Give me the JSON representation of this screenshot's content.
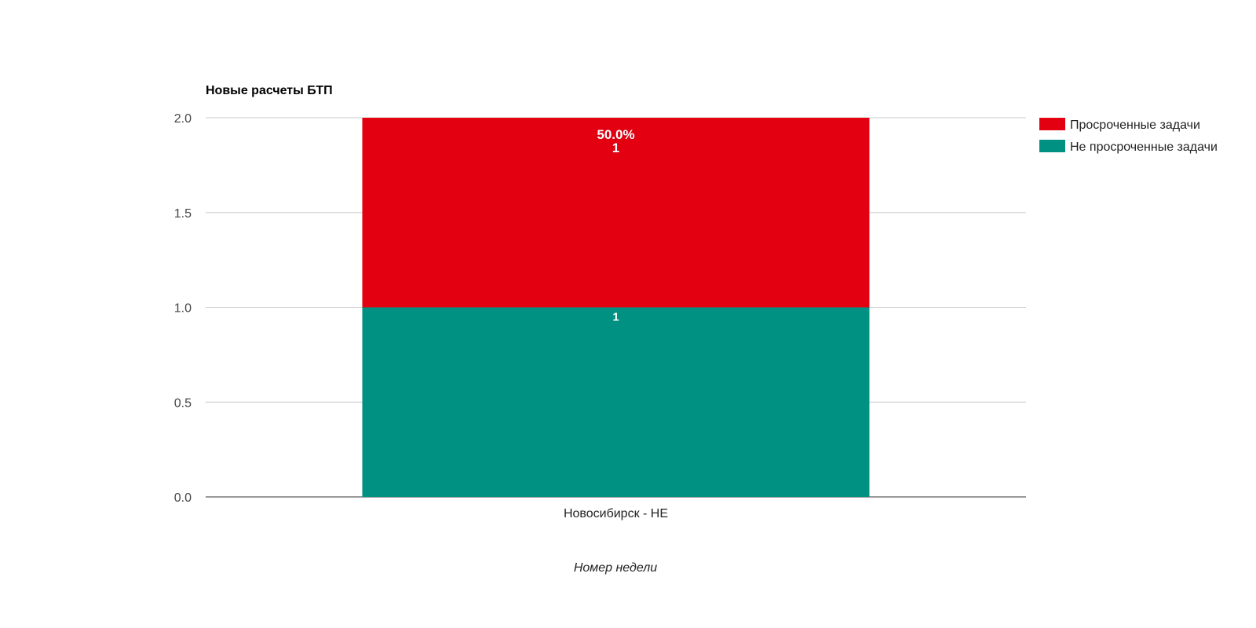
{
  "chart_data": {
    "type": "bar",
    "stacked": true,
    "title": "Новые расчеты БТП",
    "xlabel": "Номер недели",
    "ylabel": "",
    "categories": [
      "Новосибирск - НЕ"
    ],
    "ylim": [
      0,
      2
    ],
    "yticks": [
      0,
      0.5,
      1,
      1.5,
      2
    ],
    "ytick_labels": [
      "0.0",
      "0.5",
      "1.0",
      "1.5",
      "2.0"
    ],
    "grid": true,
    "legend_position": "right",
    "series": [
      {
        "name": "Не просроченные задачи",
        "color": "#009182",
        "values": [
          1
        ],
        "labels": [
          "1"
        ]
      },
      {
        "name": "Просроченные задачи",
        "color": "#e30010",
        "values": [
          1
        ],
        "labels": [
          "50.0%\n1"
        ]
      }
    ],
    "legend": [
      {
        "name": "Просроченные задачи",
        "color": "#e30010"
      },
      {
        "name": "Не просроченные задачи",
        "color": "#009182"
      }
    ]
  }
}
